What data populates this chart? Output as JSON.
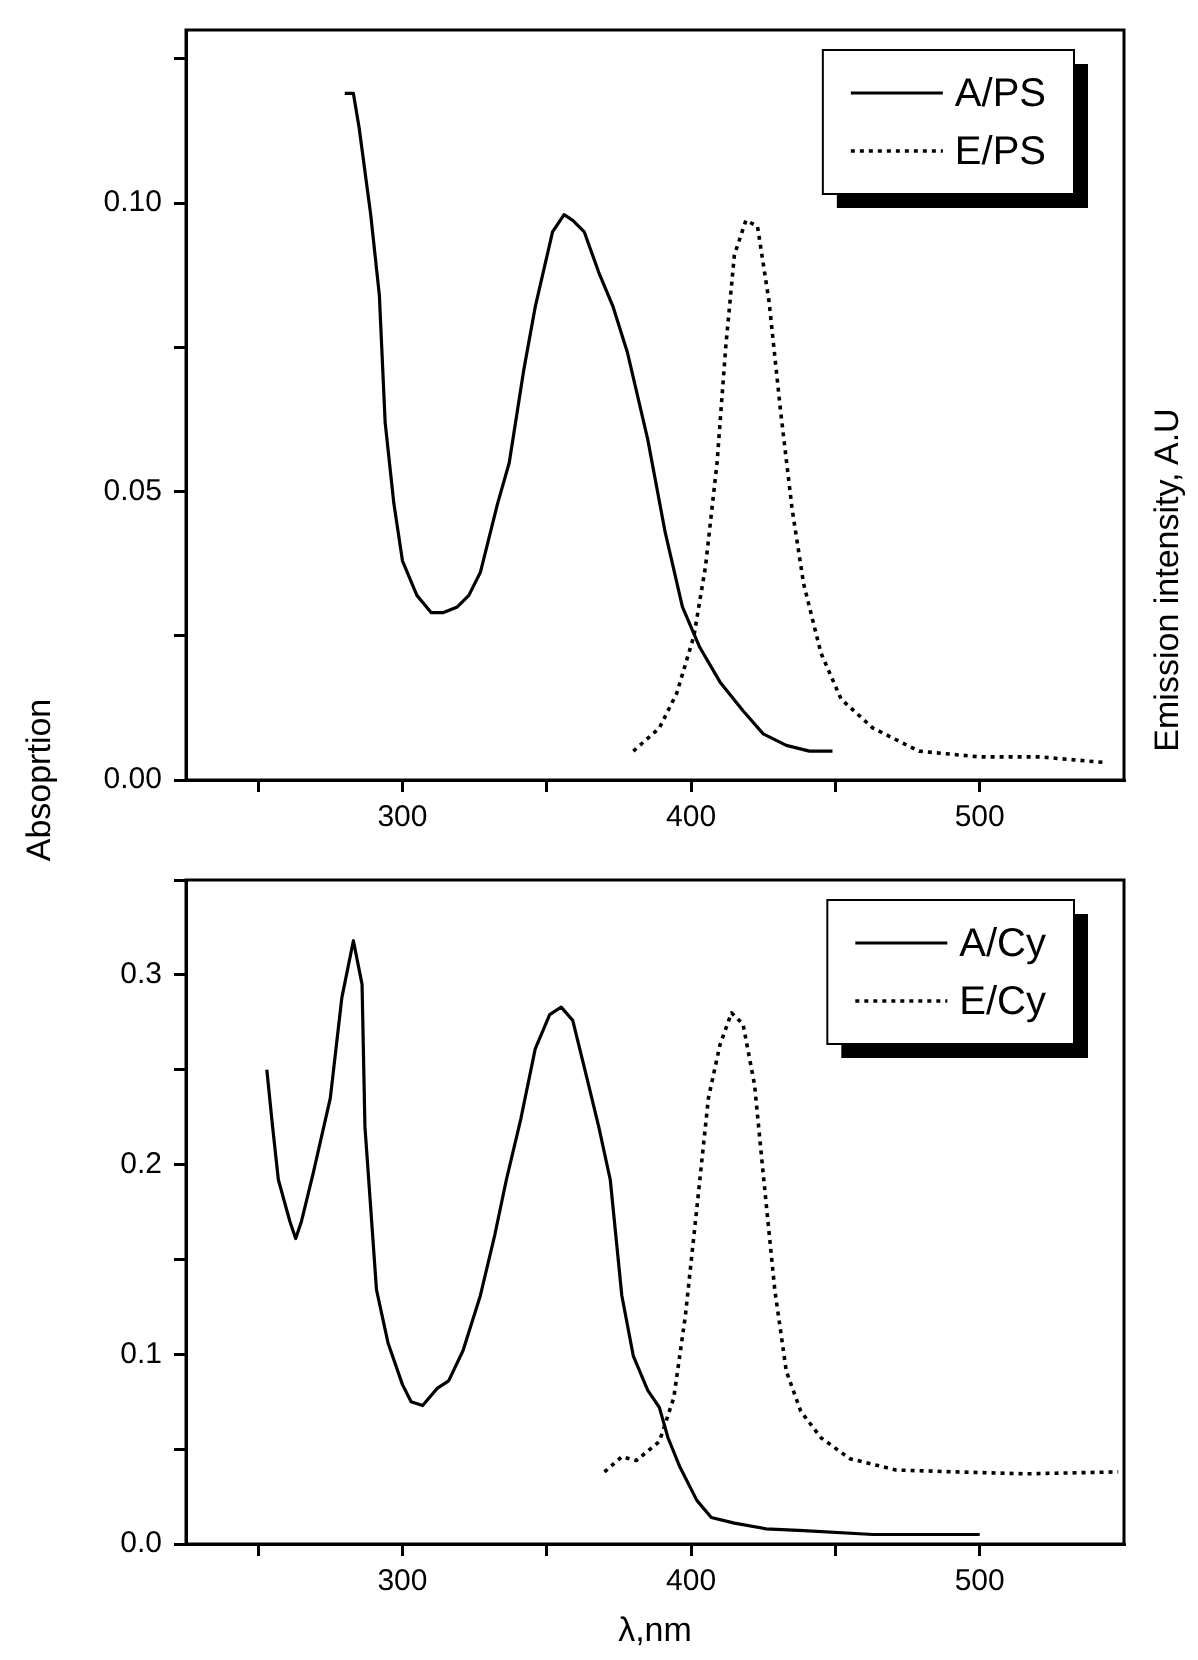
{
  "chart_data": [
    {
      "type": "line",
      "ylabel": "Absoprtion",
      "y2label": "Emission intensity, A.U",
      "legend": "top right",
      "xlim": [
        225,
        550
      ],
      "xticks": [
        {
          "value": 250,
          "label": null
        },
        300,
        {
          "value": 350,
          "label": null
        },
        400,
        {
          "value": 450,
          "label": null
        },
        500
      ],
      "ylim": [
        0,
        0.13
      ],
      "yticks": [
        {
          "value": 0,
          "label": "0.00"
        },
        {
          "value": 0.025,
          "label": null
        },
        {
          "value": 0.05,
          "label": "0.05"
        },
        {
          "value": 0.075,
          "label": null
        },
        {
          "value": 0.1,
          "label": "0.10"
        },
        {
          "value": 0.125,
          "label": null
        }
      ],
      "series": [
        {
          "name": "A/PS",
          "color": "#000000",
          "line_style": "solid",
          "x": [
            280,
            283,
            285,
            289,
            292,
            294,
            297,
            300,
            305,
            310,
            314,
            319,
            323,
            327,
            333,
            337,
            342,
            346,
            352,
            356,
            359,
            363,
            368,
            373,
            378,
            385,
            391,
            397,
            403,
            410,
            418,
            425,
            433,
            441,
            449
          ],
          "values": [
            0.119,
            0.119,
            0.113,
            0.098,
            0.084,
            0.062,
            0.048,
            0.038,
            0.032,
            0.029,
            0.029,
            0.03,
            0.032,
            0.036,
            0.048,
            0.055,
            0.071,
            0.082,
            0.095,
            0.098,
            0.097,
            0.095,
            0.088,
            0.082,
            0.074,
            0.059,
            0.043,
            0.03,
            0.023,
            0.017,
            0.012,
            0.008,
            0.006,
            0.005,
            0.005
          ]
        },
        {
          "name": "E/PS",
          "color": "#000000",
          "line_style": "dotted",
          "x": [
            380,
            389,
            395,
            401,
            405,
            409,
            412,
            415,
            419,
            423,
            427,
            431,
            435,
            439,
            445,
            452,
            463,
            479,
            500,
            521,
            544
          ],
          "values": [
            0.005,
            0.009,
            0.015,
            0.025,
            0.037,
            0.055,
            0.075,
            0.091,
            0.097,
            0.096,
            0.083,
            0.064,
            0.047,
            0.034,
            0.022,
            0.014,
            0.009,
            0.005,
            0.004,
            0.004,
            0.003
          ]
        }
      ]
    },
    {
      "type": "line",
      "xlabel": "λ,nm",
      "legend": "top right",
      "xlim": [
        225,
        550
      ],
      "xticks": [
        {
          "value": 250,
          "label": null
        },
        300,
        {
          "value": 350,
          "label": null
        },
        400,
        {
          "value": 450,
          "label": null
        },
        500
      ],
      "ylim": [
        0,
        0.35
      ],
      "yticks": [
        {
          "value": 0,
          "label": "0.0"
        },
        {
          "value": 0.05,
          "label": null
        },
        {
          "value": 0.1,
          "label": "0.1"
        },
        {
          "value": 0.15,
          "label": null
        },
        {
          "value": 0.2,
          "label": "0.2"
        },
        {
          "value": 0.25,
          "label": null
        },
        {
          "value": 0.3,
          "label": "0.3"
        },
        {
          "value": 0.35,
          "label": null
        }
      ],
      "series": [
        {
          "name": "A/Cy",
          "color": "#000000",
          "line_style": "solid",
          "x": [
            253,
            255,
            257,
            261,
            263,
            265,
            269,
            275,
            279,
            283,
            286,
            287,
            289,
            291,
            295,
            300,
            303,
            307,
            312,
            316,
            321,
            327,
            332,
            336,
            341,
            346,
            351,
            355,
            359,
            364,
            368,
            372,
            376,
            380,
            385,
            389,
            392,
            396,
            402,
            407,
            415,
            426,
            439,
            463,
            500
          ],
          "values": [
            0.25,
            0.22,
            0.192,
            0.17,
            0.161,
            0.17,
            0.195,
            0.235,
            0.288,
            0.318,
            0.295,
            0.22,
            0.177,
            0.134,
            0.106,
            0.084,
            0.075,
            0.073,
            0.082,
            0.086,
            0.102,
            0.131,
            0.163,
            0.192,
            0.224,
            0.261,
            0.279,
            0.283,
            0.276,
            0.245,
            0.22,
            0.192,
            0.131,
            0.099,
            0.081,
            0.072,
            0.056,
            0.041,
            0.023,
            0.014,
            0.011,
            0.008,
            0.007,
            0.005,
            0.005
          ]
        },
        {
          "name": "E/Cy",
          "color": "#000000",
          "line_style": "dotted",
          "x": [
            370,
            376,
            381,
            389,
            394,
            398,
            402,
            406,
            410,
            414,
            418,
            422,
            425,
            429,
            433,
            438,
            445,
            455,
            471,
            492,
            516,
            548
          ],
          "values": [
            0.038,
            0.046,
            0.044,
            0.054,
            0.077,
            0.12,
            0.177,
            0.235,
            0.263,
            0.28,
            0.274,
            0.242,
            0.195,
            0.134,
            0.091,
            0.07,
            0.056,
            0.045,
            0.039,
            0.038,
            0.037,
            0.038
          ]
        }
      ]
    }
  ]
}
